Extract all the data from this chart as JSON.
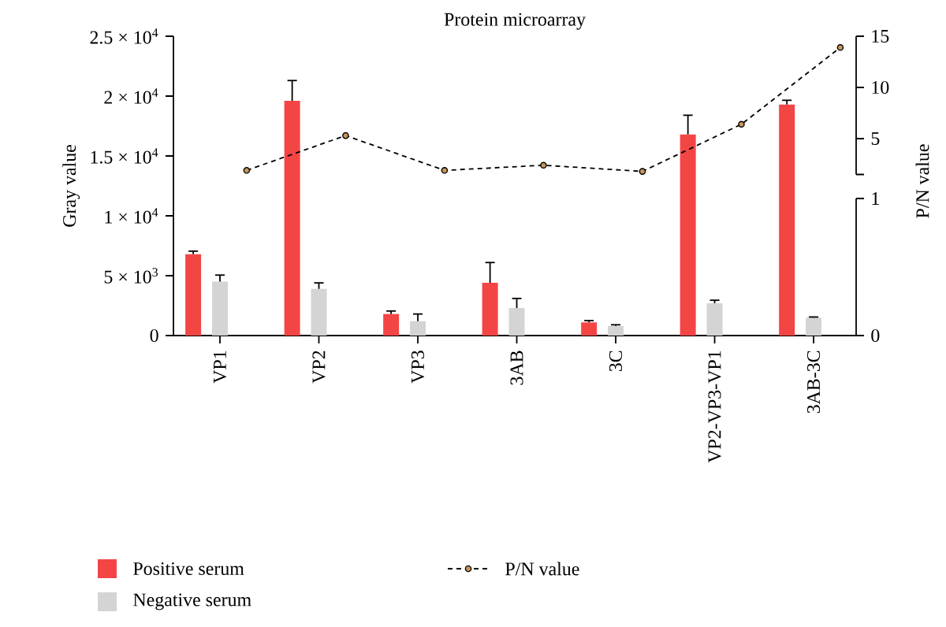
{
  "chart_data": {
    "type": "bar",
    "title": "Protein microarray",
    "ylabel": "Gray value",
    "y2label": "P/N value",
    "categories": [
      "VP1",
      "VP2",
      "VP3",
      "3AB",
      "3C",
      "VP2-VP3-VP1",
      "3AB-3C"
    ],
    "ylim": [
      0,
      25000
    ],
    "yticks": [
      0,
      {
        "value": 5000,
        "label": "5 × 10$^{3}$"
      },
      {
        "value": 10000,
        "label": "1 × 10$^{4}$"
      },
      {
        "value": 15000,
        "label": "1.5 × 10$^{4}$"
      },
      {
        "value": 20000,
        "label": "2 × 10$^{4}$"
      },
      {
        "value": 25000,
        "label": "2.5 × 10$^{4}$"
      }
    ],
    "y2lim": [
      1.5,
      15
    ],
    "y2ticks": [
      {
        "value": 1.5,
        "label": null
      },
      5,
      10,
      15
    ],
    "y3lim": [
      0,
      1
    ],
    "y3ticks": [
      0,
      1
    ],
    "legend": "bottom",
    "series": [
      {
        "name": "Positive serum",
        "color": "#f44545",
        "values": [
          6800,
          19600,
          1800,
          4400,
          1100,
          16800,
          19300
        ],
        "errors": [
          250,
          1700,
          250,
          1700,
          150,
          1600,
          350
        ]
      },
      {
        "name": "Negative serum",
        "color": "#d4d4d4",
        "values": [
          4500,
          3900,
          1200,
          2300,
          800,
          2700,
          1500
        ],
        "errors": [
          550,
          500,
          600,
          800,
          100,
          250,
          50
        ]
      },
      {
        "name": "P/N value",
        "type": "line",
        "axis": "y2",
        "color": "#000000",
        "marker": "circle",
        "line_style": "dashed",
        "values": [
          1.9,
          5.3,
          1.9,
          2.4,
          1.8,
          6.4,
          13.9
        ]
      }
    ]
  }
}
